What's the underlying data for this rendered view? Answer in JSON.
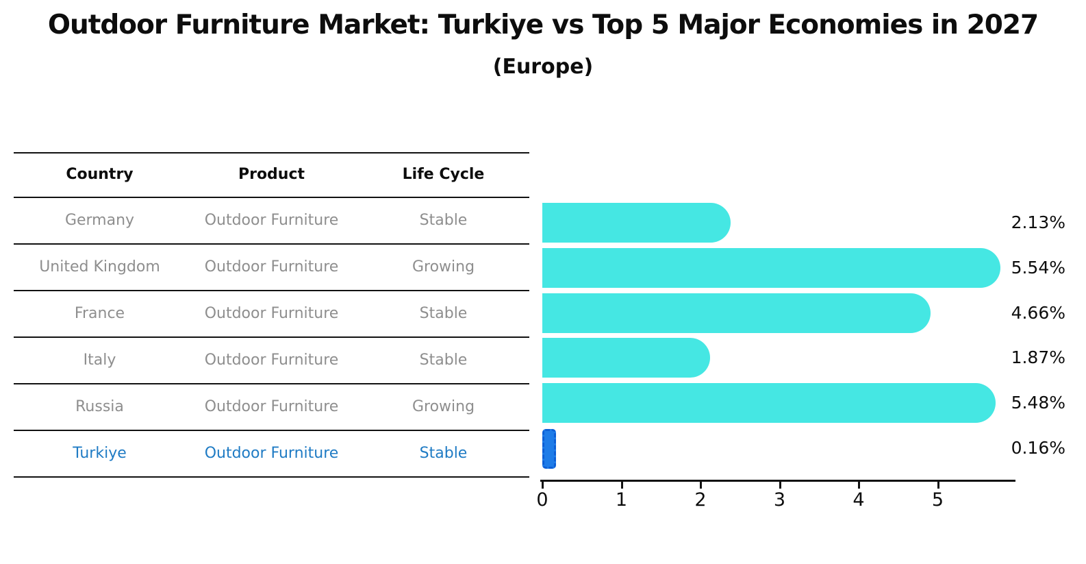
{
  "header": {
    "title": "Outdoor Furniture Market: Turkiye vs Top 5 Major Economies in 2027",
    "subtitle": "(Europe)"
  },
  "table": {
    "columns": [
      "Country",
      "Product",
      "Life Cycle"
    ],
    "rows": [
      {
        "country": "Germany",
        "product": "Outdoor Furniture",
        "life_cycle": "Stable"
      },
      {
        "country": "United Kingdom",
        "product": "Outdoor Furniture",
        "life_cycle": "Growing"
      },
      {
        "country": "France",
        "product": "Outdoor Furniture",
        "life_cycle": "Stable"
      },
      {
        "country": "Italy",
        "product": "Outdoor Furniture",
        "life_cycle": "Stable"
      },
      {
        "country": "Russia",
        "product": "Outdoor Furniture",
        "life_cycle": "Growing"
      },
      {
        "country": "Turkiye",
        "product": "Outdoor Furniture",
        "life_cycle": "Stable"
      }
    ]
  },
  "chart_data": {
    "type": "bar",
    "orientation": "horizontal",
    "title": "Outdoor Furniture Market: Turkiye vs Top 5 Major Economies in 2027 (Europe)",
    "categories": [
      "Germany",
      "United Kingdom",
      "France",
      "Italy",
      "Russia",
      "Turkiye"
    ],
    "values": [
      2.13,
      5.54,
      4.66,
      1.87,
      5.48,
      0.16
    ],
    "value_labels": [
      "2.13%",
      "5.54%",
      "4.66%",
      "1.87%",
      "5.48%",
      "0.16%"
    ],
    "x_ticks": [
      "0",
      "1",
      "2",
      "3",
      "4",
      "5"
    ],
    "xlim": [
      0,
      5.97
    ],
    "grid": false,
    "legend": false,
    "highlight_index": 5,
    "bar_color": "#45e7e3",
    "highlight_bar_color": "#1e7ce8",
    "highlight_bar_border": "#0d5fd6",
    "highlight_text_color": "#1f7bc4",
    "row_text_color": "#8e8e8e"
  }
}
